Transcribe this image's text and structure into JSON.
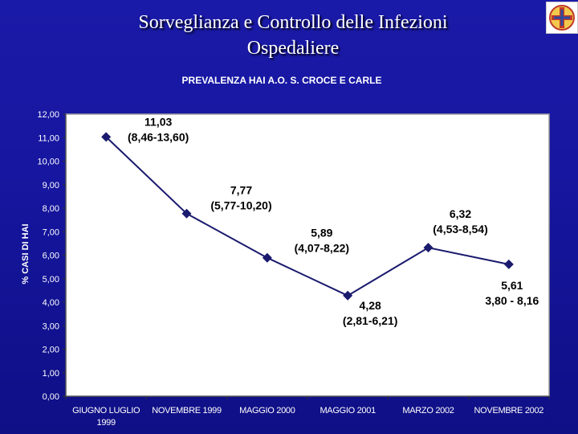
{
  "slide": {
    "title_line1": "Sorveglianza e Controllo delle Infezioni",
    "title_line2": "Ospedaliere"
  },
  "logo": {
    "icon": "hospital-cross-logo-icon"
  },
  "chart_data": {
    "type": "line",
    "title": "PREVALENZA HAI A.O. S. CROCE E CARLE",
    "xlabel": "",
    "ylabel": "% CASI DI HAI",
    "ylim": [
      0,
      12
    ],
    "yticks": [
      "0,00",
      "1,00",
      "2,00",
      "3,00",
      "4,00",
      "5,00",
      "6,00",
      "7,00",
      "8,00",
      "9,00",
      "10,00",
      "11,00",
      "12,00"
    ],
    "grid": false,
    "legend": "none",
    "categories": [
      [
        "GIUGNO LUGLIO",
        "1999"
      ],
      [
        "NOVEMBRE 1999"
      ],
      [
        "MAGGIO 2000"
      ],
      [
        "MAGGIO 2001"
      ],
      [
        "MARZO 2002"
      ],
      [
        "NOVEMBRE 2002"
      ]
    ],
    "values": [
      11.03,
      7.77,
      5.89,
      4.28,
      6.32,
      5.61
    ],
    "data_labels": [
      {
        "value": "11,03",
        "range": "(8,46-13,60)"
      },
      {
        "value": "7,77",
        "range": "(5,77-10,20)"
      },
      {
        "value": "5,89",
        "range": "(4,07-8,22)"
      },
      {
        "value": "4,28",
        "range": "(2,81-6,21)"
      },
      {
        "value": "6,32",
        "range": "(4,53-8,54)"
      },
      {
        "value": "5,61",
        "range": "3,80 - 8,16"
      }
    ],
    "colors": {
      "line": "#1a1a6e",
      "marker": "#1a1a6e",
      "plot_background": "#ffffff",
      "tick_text": "#ffffff",
      "data_label_text": "#000000",
      "title_text": "#ffffff"
    }
  }
}
